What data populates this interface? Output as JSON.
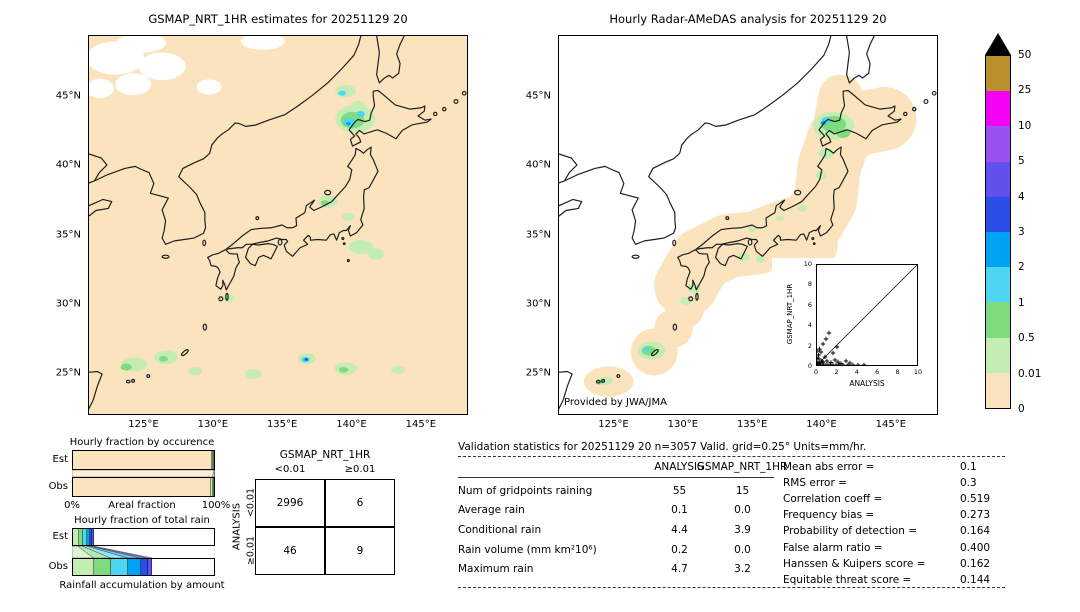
{
  "chart_data": [
    {
      "id": "gsmap_map",
      "type": "map",
      "title": "GSMAP_NRT_1HR estimates for 20251129 20",
      "lat_ticks": [
        "45°N",
        "40°N",
        "35°N",
        "30°N",
        "25°N"
      ],
      "lon_ticks": [
        "125°E",
        "130°E",
        "135°E",
        "140°E",
        "145°E"
      ],
      "units": "mm/hr",
      "precip": [
        {
          "lon": 122.9,
          "lat": 47.8,
          "rx": 2.1,
          "ry": 1.2,
          "level": "no_data"
        },
        {
          "lon": 126.3,
          "lat": 47.2,
          "rx": 1.7,
          "ry": 1.0,
          "level": "no_data"
        },
        {
          "lon": 124.8,
          "lat": 48.9,
          "rx": 1.8,
          "ry": 0.7,
          "level": "no_data"
        },
        {
          "lon": 124.2,
          "lat": 45.9,
          "rx": 1.3,
          "ry": 0.8,
          "level": "no_data"
        },
        {
          "lon": 121.8,
          "lat": 45.6,
          "rx": 1.0,
          "ry": 0.7,
          "level": "no_data"
        },
        {
          "lon": 129.7,
          "lat": 45.7,
          "rx": 0.9,
          "ry": 0.55,
          "level": "no_data"
        },
        {
          "lon": 133.6,
          "lat": 49.0,
          "rx": 1.6,
          "ry": 0.6,
          "level": "no_data"
        },
        {
          "lon": 139.6,
          "lat": 45.4,
          "rx": 0.75,
          "ry": 0.45,
          "level": "0.01"
        },
        {
          "lon": 139.35,
          "lat": 45.25,
          "rx": 0.28,
          "ry": 0.18,
          "level": "1"
        },
        {
          "lon": 140.3,
          "lat": 43.4,
          "rx": 1.45,
          "ry": 1.0,
          "level": "0.01"
        },
        {
          "lon": 140.1,
          "lat": 43.3,
          "rx": 0.85,
          "ry": 0.6,
          "level": "0.5"
        },
        {
          "lon": 139.9,
          "lat": 43.15,
          "rx": 0.45,
          "ry": 0.3,
          "level": "1"
        },
        {
          "lon": 140.7,
          "lat": 43.75,
          "rx": 0.3,
          "ry": 0.22,
          "level": "1"
        },
        {
          "lon": 139.8,
          "lat": 43.05,
          "rx": 0.16,
          "ry": 0.12,
          "level": "2"
        },
        {
          "lon": 140.5,
          "lat": 44.4,
          "rx": 0.5,
          "ry": 0.3,
          "level": "0.01"
        },
        {
          "lon": 138.3,
          "lat": 37.4,
          "rx": 0.7,
          "ry": 0.45,
          "level": "0.01"
        },
        {
          "lon": 138.1,
          "lat": 37.3,
          "rx": 0.3,
          "ry": 0.2,
          "level": "0.5"
        },
        {
          "lon": 139.8,
          "lat": 36.3,
          "rx": 0.45,
          "ry": 0.28,
          "level": "0.01"
        },
        {
          "lon": 140.7,
          "lat": 34.1,
          "rx": 0.9,
          "ry": 0.5,
          "level": "0.01"
        },
        {
          "lon": 141.8,
          "lat": 33.6,
          "rx": 0.6,
          "ry": 0.4,
          "level": "0.01"
        },
        {
          "lon": 131.1,
          "lat": 30.4,
          "rx": 0.45,
          "ry": 0.3,
          "level": "0.01"
        },
        {
          "lon": 124.3,
          "lat": 25.6,
          "rx": 0.95,
          "ry": 0.5,
          "level": "0.01"
        },
        {
          "lon": 123.7,
          "lat": 25.4,
          "rx": 0.4,
          "ry": 0.25,
          "level": "0.5"
        },
        {
          "lon": 126.6,
          "lat": 26.1,
          "rx": 0.85,
          "ry": 0.5,
          "level": "0.01"
        },
        {
          "lon": 126.4,
          "lat": 26.0,
          "rx": 0.32,
          "ry": 0.2,
          "level": "0.5"
        },
        {
          "lon": 128.7,
          "lat": 25.1,
          "rx": 0.5,
          "ry": 0.3,
          "level": "0.01"
        },
        {
          "lon": 132.9,
          "lat": 24.9,
          "rx": 0.6,
          "ry": 0.35,
          "level": "0.01"
        },
        {
          "lon": 136.8,
          "lat": 26.0,
          "rx": 0.65,
          "ry": 0.4,
          "level": "0.01"
        },
        {
          "lon": 136.7,
          "lat": 25.95,
          "rx": 0.3,
          "ry": 0.2,
          "level": "1"
        },
        {
          "lon": 136.75,
          "lat": 25.95,
          "rx": 0.13,
          "ry": 0.1,
          "level": "3"
        },
        {
          "lon": 139.6,
          "lat": 25.3,
          "rx": 0.8,
          "ry": 0.45,
          "level": "0.01"
        },
        {
          "lon": 139.45,
          "lat": 25.2,
          "rx": 0.35,
          "ry": 0.2,
          "level": "0.5"
        },
        {
          "lon": 143.4,
          "lat": 25.2,
          "rx": 0.5,
          "ry": 0.3,
          "level": "0.01"
        }
      ]
    },
    {
      "id": "radar_map",
      "type": "map",
      "title": "Hourly Radar-AMeDAS analysis for 20251129 20",
      "credit": "Provided by JWA/JMA",
      "lat_ticks": [
        "45°N",
        "40°N",
        "35°N",
        "30°N",
        "25°N"
      ],
      "lon_ticks": [
        "125°E",
        "130°E",
        "135°E",
        "140°E",
        "145°E"
      ],
      "units": "mm/hr",
      "precip": [
        {
          "lon": 140.9,
          "lat": 42.9,
          "rx": 1.5,
          "ry": 1.0,
          "level": "0.01"
        },
        {
          "lon": 140.9,
          "lat": 43.0,
          "rx": 0.9,
          "ry": 0.6,
          "level": "0.5"
        },
        {
          "lon": 140.4,
          "lat": 43.3,
          "rx": 0.35,
          "ry": 0.25,
          "level": "1"
        },
        {
          "lon": 140.15,
          "lat": 43.1,
          "rx": 0.2,
          "ry": 0.15,
          "level": "2"
        },
        {
          "lon": 141.6,
          "lat": 42.35,
          "rx": 0.5,
          "ry": 0.35,
          "level": "0.5"
        },
        {
          "lon": 140.35,
          "lat": 40.9,
          "rx": 0.55,
          "ry": 0.4,
          "level": "0.01"
        },
        {
          "lon": 140.0,
          "lat": 39.3,
          "rx": 0.4,
          "ry": 0.3,
          "level": "0.01"
        },
        {
          "lon": 138.6,
          "lat": 36.9,
          "rx": 0.35,
          "ry": 0.25,
          "level": "0.01"
        },
        {
          "lon": 137.0,
          "lat": 36.2,
          "rx": 0.3,
          "ry": 0.2,
          "level": "0.01"
        },
        {
          "lon": 135.0,
          "lat": 35.4,
          "rx": 0.3,
          "ry": 0.2,
          "level": "0.01"
        },
        {
          "lon": 134.4,
          "lat": 33.4,
          "rx": 0.45,
          "ry": 0.3,
          "level": "0.01"
        },
        {
          "lon": 135.6,
          "lat": 33.2,
          "rx": 0.35,
          "ry": 0.25,
          "level": "0.01"
        },
        {
          "lon": 130.8,
          "lat": 31.1,
          "rx": 0.5,
          "ry": 0.35,
          "level": "0.01"
        },
        {
          "lon": 130.2,
          "lat": 30.2,
          "rx": 0.4,
          "ry": 0.3,
          "level": "0.01"
        },
        {
          "lon": 127.7,
          "lat": 26.6,
          "rx": 1.0,
          "ry": 0.65,
          "level": "0.01"
        },
        {
          "lon": 127.5,
          "lat": 26.6,
          "rx": 0.5,
          "ry": 0.35,
          "level": "0.5"
        },
        {
          "lon": 127.35,
          "lat": 26.7,
          "rx": 0.2,
          "ry": 0.15,
          "level": "1"
        },
        {
          "lon": 124.4,
          "lat": 24.4,
          "rx": 0.5,
          "ry": 0.3,
          "level": "0.01"
        },
        {
          "lon": 123.9,
          "lat": 24.3,
          "rx": 0.25,
          "ry": 0.18,
          "level": "0.5"
        }
      ],
      "inset_scatter": {
        "type": "scatter",
        "xlabel": "ANALYSIS",
        "ylabel": "GSMAP_NRT_1HR",
        "xlim": [
          0,
          10
        ],
        "ylim": [
          0,
          10
        ],
        "ticks": [
          "0",
          "2",
          "4",
          "6",
          "8",
          "10"
        ],
        "points": [
          [
            0.1,
            0
          ],
          [
            0.2,
            0
          ],
          [
            0.35,
            0
          ],
          [
            0.5,
            0
          ],
          [
            0.7,
            0
          ],
          [
            0.9,
            0
          ],
          [
            1.1,
            0
          ],
          [
            1.3,
            0
          ],
          [
            1.6,
            0
          ],
          [
            1.9,
            0
          ],
          [
            2.2,
            0
          ],
          [
            2.6,
            0
          ],
          [
            3.1,
            0
          ],
          [
            3.6,
            0
          ],
          [
            4.1,
            0
          ],
          [
            4.7,
            0
          ],
          [
            0.1,
            0.15
          ],
          [
            0.3,
            0.2
          ],
          [
            0.45,
            0.4
          ],
          [
            0.6,
            0.3
          ],
          [
            0.2,
            0.6
          ],
          [
            0.15,
            1.0
          ],
          [
            0.4,
            1.3
          ],
          [
            0.25,
            1.6
          ],
          [
            0.6,
            2.1
          ],
          [
            0.9,
            2.6
          ],
          [
            1.2,
            3.2
          ],
          [
            1.0,
            0.4
          ],
          [
            1.4,
            0.25
          ],
          [
            1.8,
            0.5
          ],
          [
            2.1,
            0.3
          ],
          [
            2.4,
            0.15
          ],
          [
            0,
            0.3
          ],
          [
            0,
            0.7
          ],
          [
            0,
            1.4
          ],
          [
            0.8,
            0.8
          ],
          [
            1.6,
            1.2
          ],
          [
            2.0,
            1.8
          ],
          [
            3.3,
            0.2
          ],
          [
            2.9,
            0.4
          ]
        ]
      }
    },
    {
      "id": "colorbar",
      "type": "legend",
      "units": "mm/hr",
      "tick_labels": [
        "50",
        "25",
        "10",
        "5",
        "4",
        "3",
        "2",
        "1",
        "0.5",
        "0.01",
        "0"
      ],
      "over_color": "#000000",
      "bands_top_to_bottom": [
        "#b8912c",
        "#f303f3",
        "#9b51f0",
        "#6150ec",
        "#2b4ee6",
        "#00a2f2",
        "#4fd4f2",
        "#7edc7e",
        "#c4edb2",
        "#fbe3bd"
      ],
      "level_colors": {
        "no_data": "#ffffff",
        "0": "#fbe3bd",
        "0.01": "#c4edb2",
        "0.5": "#7edc7e",
        "1": "#4fd4f2",
        "2": "#00a2f2",
        "3": "#2b4ee6",
        "4": "#6150ec",
        "5": "#9b51f0",
        "10": "#f303f3",
        "25": "#b8912c"
      }
    },
    {
      "id": "occurrence",
      "type": "bar",
      "title": "Hourly fraction by occurence",
      "rows": [
        "Est",
        "Obs"
      ],
      "x_left": "0%",
      "x_label": "Areal fraction",
      "x_right": "100%",
      "est_segments": [
        {
          "level": "0",
          "pct": 99.5
        },
        {
          "level": "0.01",
          "pct": 0.3
        },
        {
          "level": "0.5",
          "pct": 0.2
        }
      ],
      "obs_segments": [
        {
          "level": "0",
          "pct": 98.2
        },
        {
          "level": "0.01",
          "pct": 1.2
        },
        {
          "level": "0.5",
          "pct": 0.6
        }
      ]
    },
    {
      "id": "total_rain",
      "type": "bar",
      "title": "Hourly fraction of total rain",
      "caption": "Rainfall accumulation by amount",
      "rows": [
        "Est",
        "Obs"
      ],
      "est_segments": [
        {
          "level": "0.01",
          "pct": 4
        },
        {
          "level": "0.5",
          "pct": 3
        },
        {
          "level": "1",
          "pct": 3
        },
        {
          "level": "2",
          "pct": 2
        },
        {
          "level": "3",
          "pct": 1.5
        },
        {
          "level": "4",
          "pct": 1.5
        }
      ],
      "obs_segments": [
        {
          "level": "0.01",
          "pct": 15
        },
        {
          "level": "0.5",
          "pct": 12
        },
        {
          "level": "1",
          "pct": 12
        },
        {
          "level": "2",
          "pct": 9
        },
        {
          "level": "3",
          "pct": 5
        },
        {
          "level": "4",
          "pct": 3
        }
      ]
    },
    {
      "id": "contingency",
      "type": "table",
      "title": "GSMAP_NRT_1HR",
      "row_axis": "ANALYSIS",
      "col_labels": [
        "<0.01",
        "≥0.01"
      ],
      "row_labels": [
        "<0.01",
        "≥0.01"
      ],
      "cells": [
        [
          "2996",
          "6"
        ],
        [
          "46",
          "9"
        ]
      ]
    },
    {
      "id": "stats",
      "type": "table",
      "title": "Validation statistics for 20251129 20  n=3057 Valid. grid=0.25° Units=mm/hr.",
      "col_headers": [
        "ANALYSIS",
        "GSMAP_NRT_1HR"
      ],
      "rows": [
        {
          "label": "Num of gridpoints raining",
          "analysis": "55",
          "gsmap": "15"
        },
        {
          "label": "Average rain",
          "analysis": "0.1",
          "gsmap": "0.0"
        },
        {
          "label": "Conditional rain",
          "analysis": "4.4",
          "gsmap": "3.9"
        },
        {
          "label": "Rain volume (mm km²10⁶)",
          "analysis": "0.2",
          "gsmap": "0.0"
        },
        {
          "label": "Maximum rain",
          "analysis": "4.7",
          "gsmap": "3.2"
        }
      ],
      "metrics": [
        {
          "label": "Mean abs error =",
          "value": "0.1"
        },
        {
          "label": "RMS error =",
          "value": "0.3"
        },
        {
          "label": "Correlation coeff =",
          "value": "0.519"
        },
        {
          "label": "Frequency bias =",
          "value": "0.273"
        },
        {
          "label": "Probability of detection =",
          "value": "0.164"
        },
        {
          "label": "False alarm ratio =",
          "value": "0.400"
        },
        {
          "label": "Hanssen & Kuipers score =",
          "value": "0.162"
        },
        {
          "label": "Equitable threat score =",
          "value": "0.144"
        }
      ]
    }
  ]
}
